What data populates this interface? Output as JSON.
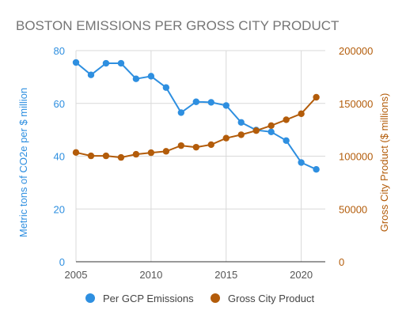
{
  "chart_data": {
    "type": "line",
    "title": "BOSTON EMISSIONS PER GROSS CITY PRODUCT",
    "x": [
      2005,
      2006,
      2007,
      2008,
      2009,
      2010,
      2011,
      2012,
      2013,
      2014,
      2015,
      2016,
      2017,
      2018,
      2019,
      2020,
      2021
    ],
    "x_ticks": [
      "2005",
      "2010",
      "2015",
      "2020"
    ],
    "xlim": [
      2005,
      2021.6
    ],
    "y_left": {
      "label": "Metric tons of CO2e per $ million",
      "ticks": [
        "0",
        "20",
        "40",
        "60",
        "80"
      ],
      "lim": [
        0,
        80
      ]
    },
    "y_right": {
      "label": "Gross City Product ($ millions)",
      "ticks": [
        "0",
        "50000",
        "100000",
        "150000",
        "200000"
      ],
      "lim": [
        0,
        200000
      ]
    },
    "series": [
      {
        "name": "Per GCP Emissions",
        "axis": "left",
        "color": "#2e8fe0",
        "values": [
          75.5,
          70.8,
          75.2,
          75.2,
          69.3,
          70.3,
          66.0,
          56.5,
          60.6,
          60.4,
          59.2,
          52.8,
          49.9,
          49.2,
          45.9,
          37.6,
          35.0
        ]
      },
      {
        "name": "Gross City Product",
        "axis": "right",
        "color": "#b35c0a",
        "values": [
          103500,
          100300,
          100300,
          98800,
          101800,
          103300,
          104600,
          110000,
          108500,
          110900,
          117100,
          120300,
          124200,
          129000,
          134500,
          140200,
          155800
        ]
      }
    ],
    "grid": true,
    "legend_position": "bottom"
  },
  "colors": {
    "title": "#757575",
    "grid": "#d9d9d9",
    "axis_line": "#333333",
    "x_tick_text": "#555555",
    "legend_text": "#444444"
  }
}
